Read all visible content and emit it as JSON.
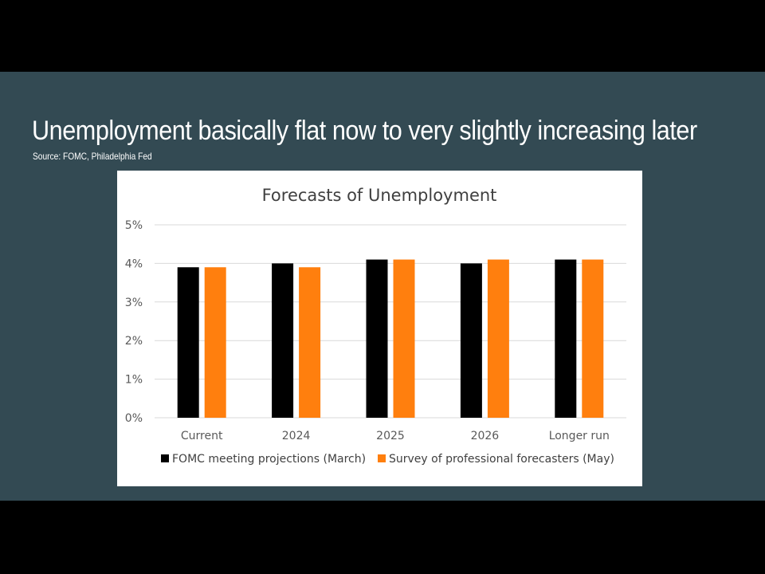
{
  "slide": {
    "title": "Unemployment basically flat now to very slightly increasing later",
    "source": "Source: FOMC, Philadelphia Fed"
  },
  "chart_data": {
    "type": "bar",
    "title": "Forecasts of Unemployment",
    "categories": [
      "Current",
      "2024",
      "2025",
      "2026",
      "Longer run"
    ],
    "series": [
      {
        "name": "FOMC meeting projections (March)",
        "color": "#000000",
        "values": [
          3.9,
          4.0,
          4.1,
          4.0,
          4.1
        ]
      },
      {
        "name": "Survey of professional forecasters (May)",
        "color": "#ff7f0e",
        "values": [
          3.9,
          3.9,
          4.1,
          4.1,
          4.1
        ]
      }
    ],
    "ylim": [
      0,
      5
    ],
    "yticks": [
      "0%",
      "1%",
      "2%",
      "3%",
      "4%",
      "5%"
    ],
    "grid": true,
    "legend": "bottom"
  }
}
